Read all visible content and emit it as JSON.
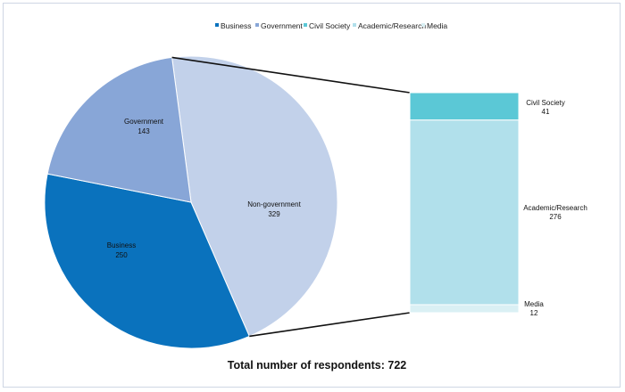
{
  "chart_data": {
    "type": "pie",
    "pie": {
      "slices": [
        {
          "label": "Non-government",
          "value": 329,
          "color": "#c2d1ea"
        },
        {
          "label": "Business",
          "value": 250,
          "color": "#0a72bd"
        },
        {
          "label": "Government",
          "value": 143,
          "color": "#88a6d7"
        }
      ]
    },
    "breakdown": {
      "of": "Non-government",
      "segments": [
        {
          "label": "Civil Society",
          "value": 41,
          "color": "#5bc8d6"
        },
        {
          "label": "Academic/Research",
          "value": 276,
          "color": "#b1e0eb"
        },
        {
          "label": "Media",
          "value": 12,
          "color": "#daf0f4"
        }
      ]
    },
    "legend": {
      "placement": "top-center",
      "items": [
        {
          "label": "Business",
          "color": "#0a72bd"
        },
        {
          "label": "Government",
          "color": "#88a6d7"
        },
        {
          "label": "Civil Society",
          "color": "#5bc8d6"
        },
        {
          "label": "Academic/Research",
          "color": "#b1e0eb"
        },
        {
          "label": "Media",
          "color": "#daf0f4"
        }
      ]
    },
    "total_label": "Total number of respondents: 722"
  }
}
